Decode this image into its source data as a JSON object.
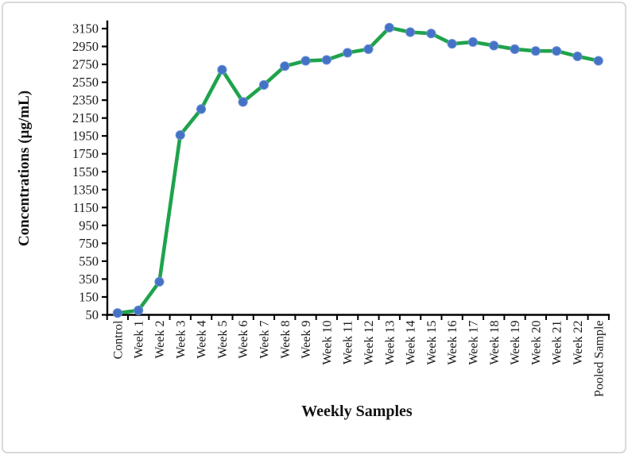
{
  "figure": {
    "background": "#ffffff",
    "border_color": "#d9d9d9"
  },
  "chart_data": {
    "type": "line",
    "title": "",
    "xlabel": "Weekly Samples",
    "ylabel": "Concentrations (µg/mL)",
    "categories": [
      "Control",
      "Week 1",
      "Week 2",
      "Week 3",
      "Week 4",
      "Week 5",
      "Week 6",
      "Week 7",
      "Week 8",
      "Week 9",
      "Week 10",
      "Week 11",
      "Week 12",
      "Week 13",
      "Week 14",
      "Week 15",
      "Week 16",
      "Week 17",
      "Week 18",
      "Week 19",
      "Week 20",
      "Week 21",
      "Week 22",
      "Pooled Sample"
    ],
    "series": [
      {
        "name": "Concentration",
        "values": [
          60,
          75,
          320,
          1960,
          2250,
          2690,
          2330,
          2520,
          2730,
          2790,
          2800,
          2880,
          2920,
          3160,
          3110,
          3095,
          2980,
          3000,
          2960,
          2920,
          2900,
          2900,
          2840,
          2790
        ],
        "line_color": "#1FA34C",
        "marker_color": "#4472C4",
        "marker_edge_color": "#6E92D8",
        "marker": "circle"
      }
    ],
    "y_ticks": [
      50,
      150,
      350,
      550,
      750,
      950,
      1150,
      1350,
      1550,
      1750,
      1950,
      2150,
      2350,
      2550,
      2750,
      2950,
      3150
    ],
    "ylim": [
      50,
      3250
    ],
    "grid": false,
    "legend_position": "none",
    "axis_color": "#000000",
    "x_labels_rotation": -90
  }
}
